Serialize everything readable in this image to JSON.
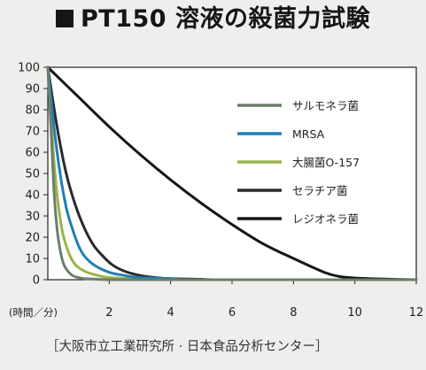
{
  "title": "PT150 溶液の殺菌力試験",
  "source": "［大阪市立工業研究所 · 日本食品分析センター］",
  "chart_data": {
    "type": "line",
    "xlabel": "(時間／分)",
    "ylabel": "",
    "xlim": [
      0,
      12
    ],
    "ylim": [
      0,
      100
    ],
    "xticks": [
      2,
      4,
      6,
      8,
      10,
      12
    ],
    "yticks": [
      0,
      10,
      20,
      30,
      40,
      50,
      60,
      70,
      80,
      90,
      100
    ],
    "grid": false,
    "legend": "right",
    "series": [
      {
        "name": "サルモネラ菌",
        "color": "#6b7f6a",
        "x": [
          0,
          0.1,
          0.2,
          0.3,
          0.4,
          0.5,
          0.6,
          0.8,
          1.0,
          1.2,
          1.5,
          2.0,
          3.0,
          12
        ],
        "y": [
          100,
          72,
          42,
          24,
          14,
          8,
          5,
          2,
          1,
          0.5,
          0.3,
          0,
          0,
          0
        ]
      },
      {
        "name": "MRSA",
        "color": "#1f7fb8",
        "x": [
          0,
          0.2,
          0.4,
          0.6,
          0.8,
          1.0,
          1.2,
          1.5,
          2.0,
          2.5,
          3.0,
          4.0,
          5.0,
          12
        ],
        "y": [
          100,
          72,
          50,
          34,
          24,
          16,
          11,
          7,
          3.5,
          2,
          1,
          0.5,
          0,
          0
        ]
      },
      {
        "name": "大腸菌O-157",
        "color": "#9ab34a",
        "x": [
          0,
          0.1,
          0.2,
          0.3,
          0.4,
          0.5,
          0.7,
          0.9,
          1.2,
          1.5,
          2.0,
          3.0,
          4.0,
          12
        ],
        "y": [
          100,
          78,
          56,
          40,
          29,
          21,
          12,
          7,
          4,
          2.5,
          1,
          0.5,
          0,
          0
        ]
      },
      {
        "name": "セラチア菌",
        "color": "#2a2a2a",
        "x": [
          0,
          0.3,
          0.6,
          0.9,
          1.2,
          1.5,
          1.8,
          2.1,
          2.5,
          3.0,
          3.5,
          4.0,
          5.0,
          6.0,
          12
        ],
        "y": [
          100,
          72,
          50,
          35,
          24,
          16,
          11,
          7,
          4,
          2,
          1,
          0.5,
          0.2,
          0,
          0
        ]
      },
      {
        "name": "レジオネラ菌",
        "color": "#151515",
        "x": [
          0,
          1,
          2,
          3,
          4,
          5,
          6,
          7,
          8,
          9,
          9.5,
          10,
          11,
          12
        ],
        "y": [
          100,
          86,
          72,
          59,
          47,
          36,
          26,
          17,
          10,
          3.5,
          1.5,
          0.8,
          0.3,
          0
        ]
      }
    ]
  }
}
